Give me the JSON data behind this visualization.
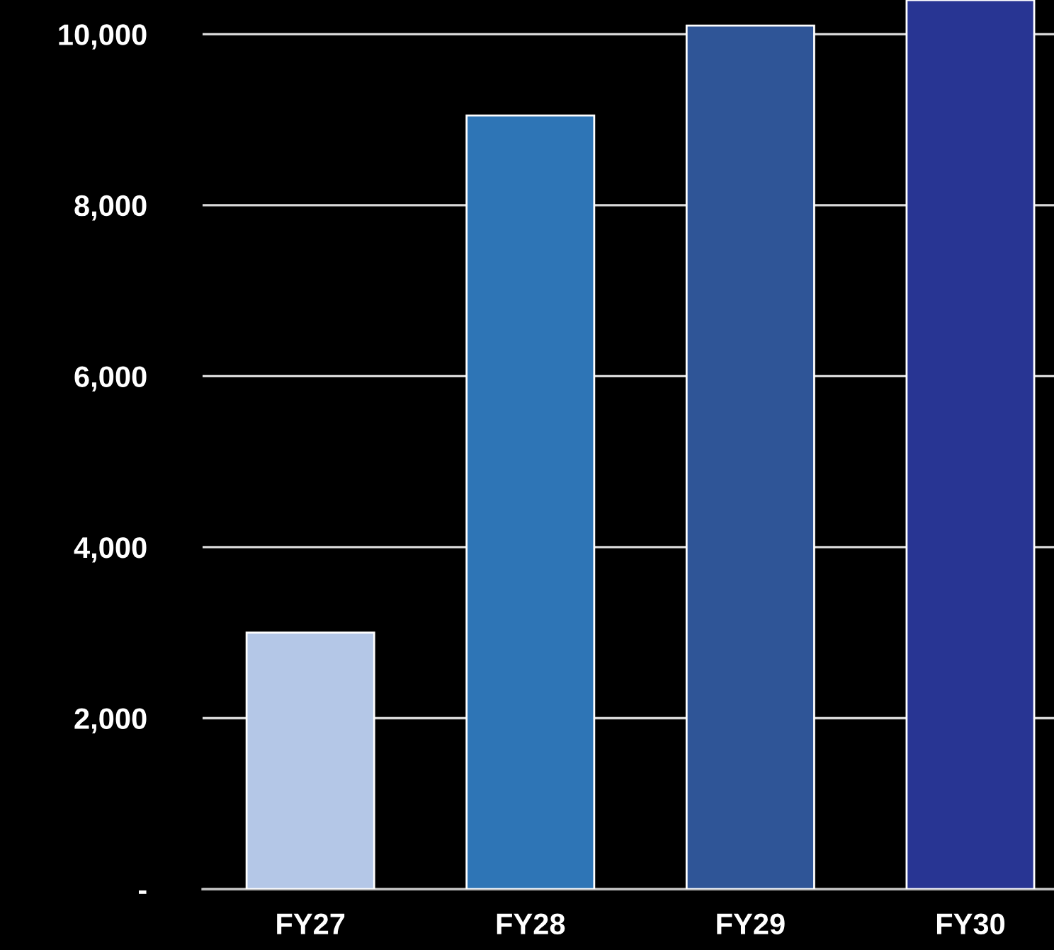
{
  "chart_data": {
    "type": "bar",
    "categories": [
      "FY27",
      "FY28",
      "FY29",
      "FY30"
    ],
    "values": [
      3000,
      9050,
      10100,
      10400
    ],
    "colors": [
      "#b4c7e7",
      "#2e75b6",
      "#2f5597",
      "#283593"
    ],
    "ylim": [
      0,
      10400
    ],
    "yticks": [
      {
        "value": 0,
        "label": "-"
      },
      {
        "value": 2000,
        "label": "2,000"
      },
      {
        "value": 4000,
        "label": "4,000"
      },
      {
        "value": 6000,
        "label": "6,000"
      },
      {
        "value": 8000,
        "label": "8,000"
      },
      {
        "value": 10000,
        "label": "10,000"
      }
    ],
    "grid": "y",
    "legend": false
  }
}
